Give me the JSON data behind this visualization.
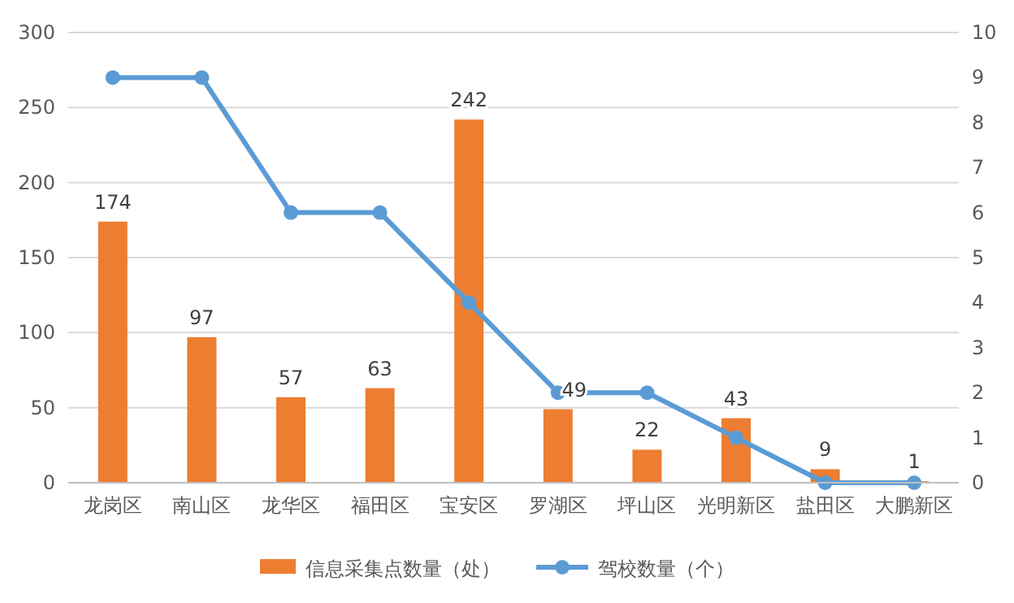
{
  "chart_data": {
    "type": "bar",
    "categories": [
      "龙岗区",
      "南山区",
      "龙华区",
      "福田区",
      "宝安区",
      "罗湖区",
      "坪山区",
      "光明新区",
      "盐田区",
      "大鹏新区"
    ],
    "series": [
      {
        "name": "信息采集点数量（处）",
        "color": "#ed7d31",
        "values": [
          174,
          97,
          57,
          63,
          242,
          49,
          22,
          43,
          9,
          1
        ],
        "value_labels": [
          "174",
          "97",
          "57",
          "63",
          "242",
          "49",
          "22",
          "43",
          "9",
          "1"
        ]
      },
      {
        "name": "驾校数量（个）",
        "type": "line",
        "axis": "y2",
        "color": "#5b9bd5",
        "values": [
          9,
          9,
          6,
          6,
          4,
          2,
          2,
          1,
          0,
          0
        ]
      }
    ],
    "ylim": [
      0,
      300
    ],
    "yticks": [
      0,
      50,
      100,
      150,
      200,
      250,
      300
    ],
    "y2lim": [
      0,
      10
    ],
    "y2ticks": [
      0,
      1,
      2,
      3,
      4,
      5,
      6,
      7,
      8,
      9,
      10
    ],
    "grid": "y",
    "legend": "bottom",
    "marker": "circle"
  }
}
